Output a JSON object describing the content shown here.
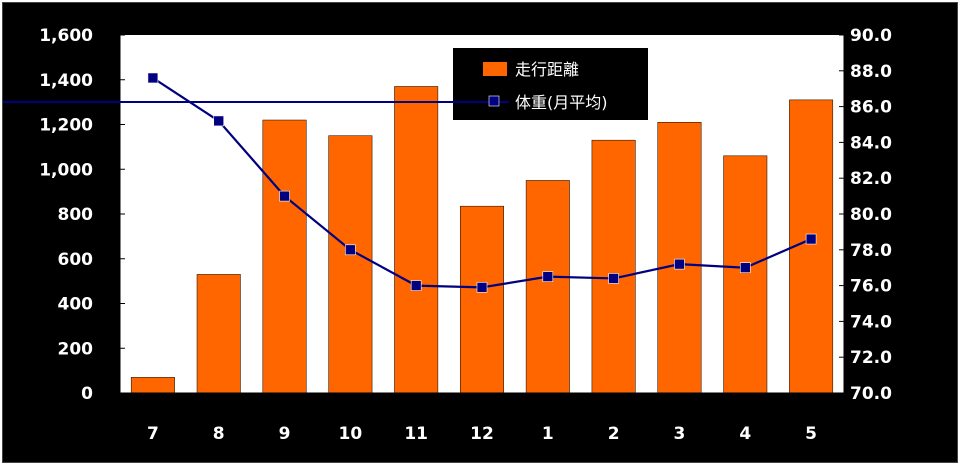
{
  "chart_data": {
    "type": "bar+line",
    "categories": [
      "7",
      "8",
      "9",
      "10",
      "11",
      "12",
      "1",
      "2",
      "3",
      "4",
      "5"
    ],
    "series": [
      {
        "name": "走行距離",
        "type": "bar",
        "axis": "left",
        "color": "#FF6600",
        "values": [
          70,
          530,
          1220,
          1150,
          1370,
          835,
          950,
          1130,
          1210,
          1060,
          1310
        ]
      },
      {
        "name": "体重(月平均)",
        "type": "line",
        "axis": "right",
        "color": "#000080",
        "values": [
          87.6,
          85.2,
          81.0,
          78.0,
          76.0,
          75.9,
          76.5,
          76.4,
          77.2,
          77.0,
          78.6
        ]
      }
    ],
    "y_left": {
      "lim": [
        0,
        1600
      ],
      "ticks": [
        0,
        200,
        400,
        600,
        800,
        1000,
        1200,
        1400,
        1600
      ],
      "tick_labels": [
        "0",
        "200",
        "400",
        "600",
        "800",
        "1,000",
        "1,200",
        "1,400",
        "1,600"
      ]
    },
    "y_right": {
      "lim": [
        70,
        90
      ],
      "ticks": [
        70,
        72,
        74,
        76,
        78,
        80,
        82,
        84,
        86,
        88,
        90
      ],
      "tick_labels": [
        "70.0",
        "72.0",
        "74.0",
        "76.0",
        "78.0",
        "80.0",
        "82.0",
        "84.0",
        "86.0",
        "88.0",
        "90.0"
      ]
    },
    "grid": false,
    "legend_position": "top-right",
    "plot_background": "#ffffff",
    "chart_background": "#000000"
  }
}
